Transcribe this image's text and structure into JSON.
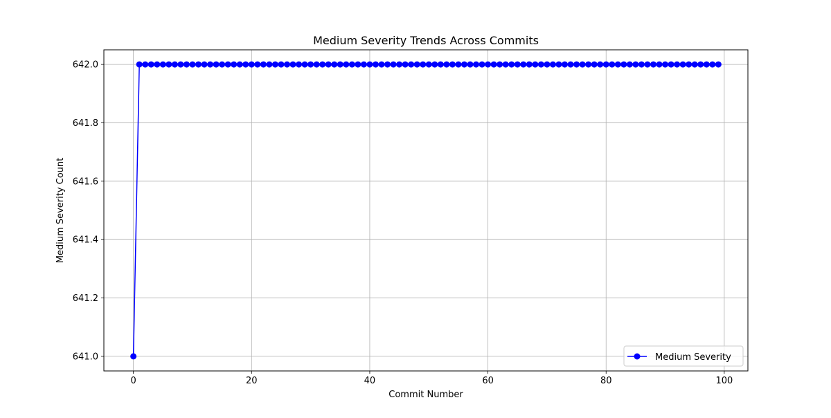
{
  "chart_data": {
    "type": "line",
    "title": "Medium Severity Trends Across Commits",
    "xlabel": "Commit Number",
    "ylabel": "Medium Severity Count",
    "xlim": [
      -5,
      104
    ],
    "ylim": [
      640.95,
      642.05
    ],
    "xticks": [
      0,
      20,
      40,
      60,
      80,
      100
    ],
    "xtick_labels": [
      "0",
      "20",
      "40",
      "60",
      "80",
      "100"
    ],
    "yticks": [
      641.0,
      641.2,
      641.4,
      641.6,
      641.8,
      642.0
    ],
    "ytick_labels": [
      "641.0",
      "641.2",
      "641.4",
      "641.6",
      "641.8",
      "642.0"
    ],
    "grid": true,
    "legend_position": "lower-right",
    "series": [
      {
        "name": "Medium Severity",
        "color": "#0000ff",
        "marker": "circle",
        "x_start": 0,
        "x_end": 99,
        "values": [
          641,
          642,
          642,
          642,
          642,
          642,
          642,
          642,
          642,
          642,
          642,
          642,
          642,
          642,
          642,
          642,
          642,
          642,
          642,
          642,
          642,
          642,
          642,
          642,
          642,
          642,
          642,
          642,
          642,
          642,
          642,
          642,
          642,
          642,
          642,
          642,
          642,
          642,
          642,
          642,
          642,
          642,
          642,
          642,
          642,
          642,
          642,
          642,
          642,
          642,
          642,
          642,
          642,
          642,
          642,
          642,
          642,
          642,
          642,
          642,
          642,
          642,
          642,
          642,
          642,
          642,
          642,
          642,
          642,
          642,
          642,
          642,
          642,
          642,
          642,
          642,
          642,
          642,
          642,
          642,
          642,
          642,
          642,
          642,
          642,
          642,
          642,
          642,
          642,
          642,
          642,
          642,
          642,
          642,
          642,
          642,
          642,
          642,
          642,
          642
        ]
      }
    ]
  }
}
